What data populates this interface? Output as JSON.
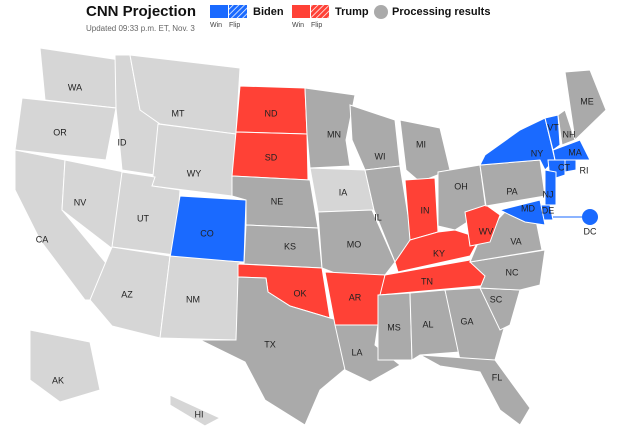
{
  "header": {
    "title": "CNN Projection",
    "updated": "Updated 09:33 p.m. ET, Nov. 3"
  },
  "legend": [
    {
      "name": "Biden",
      "win": "Win",
      "flip": "Flip",
      "color": "#1a6aff"
    },
    {
      "name": "Trump",
      "win": "Win",
      "flip": "Flip",
      "color": "#ff4136"
    },
    {
      "name": "Processing results",
      "color": "#aaaaaa"
    }
  ],
  "status_colors": {
    "biden": "#1a6aff",
    "trump": "#ff4136",
    "processing": "#aaaaaa",
    "pending": "#d6d6d6"
  },
  "states": [
    {
      "label": "WA",
      "status": "pending"
    },
    {
      "label": "OR",
      "status": "pending"
    },
    {
      "label": "CA",
      "status": "pending"
    },
    {
      "label": "NV",
      "status": "pending"
    },
    {
      "label": "ID",
      "status": "pending"
    },
    {
      "label": "MT",
      "status": "pending"
    },
    {
      "label": "WY",
      "status": "pending"
    },
    {
      "label": "UT",
      "status": "pending"
    },
    {
      "label": "CO",
      "status": "biden"
    },
    {
      "label": "AZ",
      "status": "pending"
    },
    {
      "label": "NM",
      "status": "pending"
    },
    {
      "label": "ND",
      "status": "trump"
    },
    {
      "label": "SD",
      "status": "trump"
    },
    {
      "label": "NE",
      "status": "processing"
    },
    {
      "label": "KS",
      "status": "processing"
    },
    {
      "label": "OK",
      "status": "trump"
    },
    {
      "label": "TX",
      "status": "processing"
    },
    {
      "label": "MN",
      "status": "processing"
    },
    {
      "label": "IA",
      "status": "pending"
    },
    {
      "label": "MO",
      "status": "processing"
    },
    {
      "label": "AR",
      "status": "trump"
    },
    {
      "label": "LA",
      "status": "processing"
    },
    {
      "label": "WI",
      "status": "processing"
    },
    {
      "label": "IL",
      "status": "processing"
    },
    {
      "label": "MI",
      "status": "processing"
    },
    {
      "label": "IN",
      "status": "trump"
    },
    {
      "label": "OH",
      "status": "processing"
    },
    {
      "label": "KY",
      "status": "trump"
    },
    {
      "label": "TN",
      "status": "trump"
    },
    {
      "label": "MS",
      "status": "processing"
    },
    {
      "label": "AL",
      "status": "processing"
    },
    {
      "label": "GA",
      "status": "processing"
    },
    {
      "label": "FL",
      "status": "processing"
    },
    {
      "label": "SC",
      "status": "processing"
    },
    {
      "label": "NC",
      "status": "processing"
    },
    {
      "label": "VA",
      "status": "processing"
    },
    {
      "label": "WV",
      "status": "trump"
    },
    {
      "label": "PA",
      "status": "processing"
    },
    {
      "label": "NY",
      "status": "biden"
    },
    {
      "label": "VT",
      "status": "biden"
    },
    {
      "label": "NH",
      "status": "processing"
    },
    {
      "label": "ME",
      "status": "processing"
    },
    {
      "label": "MA",
      "status": "biden"
    },
    {
      "label": "CT",
      "status": "biden"
    },
    {
      "label": "RI",
      "status": "biden"
    },
    {
      "label": "NJ",
      "status": "biden"
    },
    {
      "label": "DE",
      "status": "biden"
    },
    {
      "label": "MD",
      "status": "biden"
    },
    {
      "label": "AK",
      "status": "pending"
    },
    {
      "label": "HI",
      "status": "pending"
    },
    {
      "label": "DC",
      "status": "biden"
    }
  ]
}
